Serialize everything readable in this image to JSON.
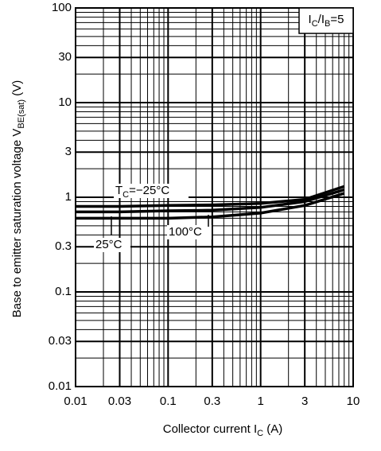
{
  "chart_data": {
    "type": "line",
    "x_label": [
      "Collector current  I",
      "C",
      "  (A)"
    ],
    "y_label": [
      "Base to emitter saturation voltage  V",
      "BE(sat)",
      "  (V)"
    ],
    "annotation": [
      "I",
      "C",
      "/I",
      "B",
      "=5"
    ],
    "x": [
      0.01,
      0.03,
      0.1,
      0.3,
      1,
      3,
      8
    ],
    "series": [
      {
        "label": [
          "T",
          "C",
          "=−25°C"
        ],
        "color": "#000000",
        "values": [
          0.8,
          0.8,
          0.82,
          0.83,
          0.86,
          0.95,
          1.3
        ]
      },
      {
        "label": [
          "25°C"
        ],
        "color": "#000000",
        "values": [
          0.7,
          0.7,
          0.72,
          0.73,
          0.78,
          0.9,
          1.2
        ]
      },
      {
        "label": [
          "100°C"
        ],
        "color": "#000000",
        "values": [
          0.6,
          0.6,
          0.6,
          0.62,
          0.68,
          0.82,
          1.1
        ]
      }
    ],
    "xscale": "log",
    "yscale": "log",
    "xlim": [
      0.01,
      10
    ],
    "ylim": [
      0.01,
      100
    ],
    "xticks": [
      0.01,
      0.03,
      0.1,
      0.3,
      1,
      3,
      10
    ],
    "yticks": [
      0.01,
      0.03,
      0.1,
      0.3,
      1,
      3,
      10,
      30,
      100
    ],
    "grid": true,
    "minor_grid": true
  }
}
